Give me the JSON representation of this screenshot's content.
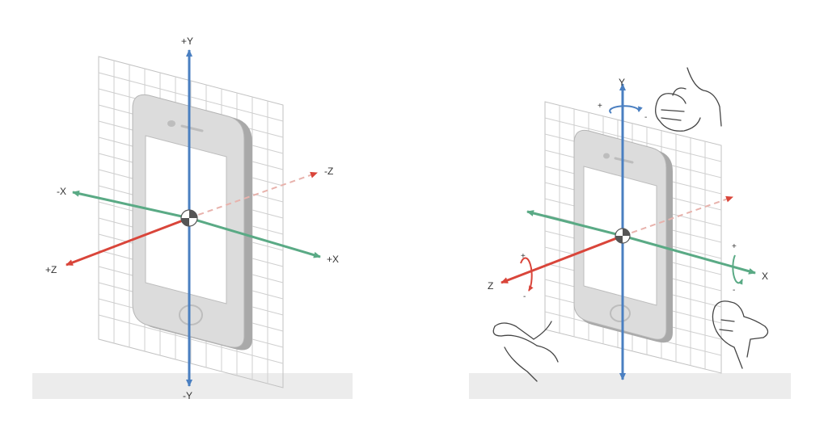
{
  "colors": {
    "y_axis": "#4a7fc1",
    "x_axis": "#5aaa85",
    "z_axis": "#d9453a",
    "grid": "#c8c8c8",
    "phone_body": "#dcdcdc",
    "phone_edge": "#a9a9a9",
    "ground": "#ececec"
  },
  "left_diagram": {
    "labels": {
      "plus_y": "+Y",
      "minus_y": "-Y",
      "plus_x": "+X",
      "minus_x": "-X",
      "plus_z": "+Z",
      "minus_z": "-Z"
    }
  },
  "right_diagram": {
    "labels": {
      "y": "Y",
      "x": "X",
      "z": "Z"
    },
    "rotation_signs": {
      "y_plus": "+",
      "y_minus": "-",
      "x_plus": "+",
      "x_minus": "-",
      "z_plus": "+",
      "z_minus": "-"
    },
    "icons": [
      "hand-icon",
      "hand-icon",
      "hand-icon"
    ]
  }
}
